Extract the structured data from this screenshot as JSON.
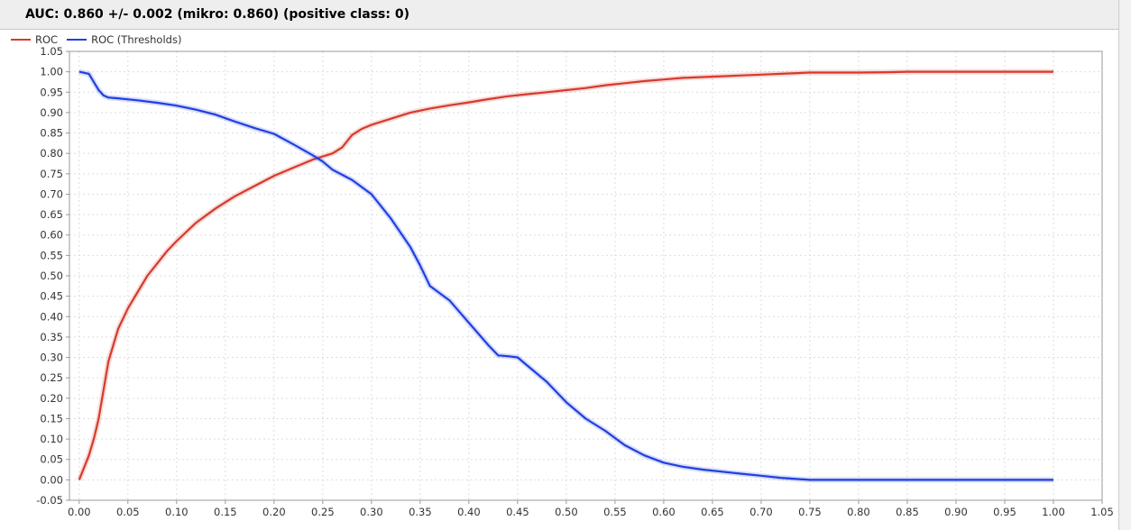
{
  "header": {
    "title": "AUC: 0.860 +/- 0.002 (mikro: 0.860) (positive class: 0)"
  },
  "colors": {
    "roc": "#d63a2c",
    "thresholds": "#1f3fe0",
    "grid": "#dddddd",
    "frame": "#999999"
  },
  "chart_data": {
    "type": "line",
    "title": "AUC: 0.860 +/- 0.002 (mikro: 0.860) (positive class: 0)",
    "xlim": [
      -0.01,
      1.05
    ],
    "ylim": [
      -0.05,
      1.05
    ],
    "xticks": [
      "0.00",
      "0.05",
      "0.10",
      "0.15",
      "0.20",
      "0.25",
      "0.30",
      "0.35",
      "0.40",
      "0.45",
      "0.50",
      "0.55",
      "0.60",
      "0.65",
      "0.70",
      "0.75",
      "0.80",
      "0.85",
      "0.90",
      "0.95",
      "1.00",
      "1.05"
    ],
    "yticks": [
      "-0.05",
      "0.00",
      "0.05",
      "0.10",
      "0.15",
      "0.20",
      "0.25",
      "0.30",
      "0.35",
      "0.40",
      "0.45",
      "0.50",
      "0.55",
      "0.60",
      "0.65",
      "0.70",
      "0.75",
      "0.80",
      "0.85",
      "0.90",
      "0.95",
      "1.00",
      "1.05"
    ],
    "grid": true,
    "legend_position": "top-left",
    "series": [
      {
        "name": "ROC",
        "color": "#d63a2c",
        "x": [
          0.0,
          0.005,
          0.01,
          0.015,
          0.02,
          0.025,
          0.03,
          0.035,
          0.04,
          0.05,
          0.06,
          0.07,
          0.08,
          0.09,
          0.1,
          0.12,
          0.14,
          0.16,
          0.18,
          0.2,
          0.22,
          0.24,
          0.26,
          0.27,
          0.28,
          0.29,
          0.3,
          0.32,
          0.34,
          0.36,
          0.38,
          0.4,
          0.42,
          0.44,
          0.46,
          0.48,
          0.5,
          0.52,
          0.54,
          0.56,
          0.58,
          0.6,
          0.62,
          0.64,
          0.66,
          0.68,
          0.7,
          0.72,
          0.74,
          0.75,
          0.8,
          0.83,
          0.85,
          0.9,
          0.95,
          1.0
        ],
        "y": [
          0.0,
          0.03,
          0.06,
          0.1,
          0.15,
          0.22,
          0.29,
          0.33,
          0.37,
          0.42,
          0.46,
          0.5,
          0.53,
          0.56,
          0.585,
          0.63,
          0.665,
          0.695,
          0.72,
          0.745,
          0.765,
          0.785,
          0.8,
          0.815,
          0.845,
          0.86,
          0.87,
          0.885,
          0.9,
          0.91,
          0.918,
          0.925,
          0.933,
          0.94,
          0.945,
          0.95,
          0.955,
          0.96,
          0.967,
          0.972,
          0.977,
          0.981,
          0.985,
          0.987,
          0.989,
          0.991,
          0.993,
          0.995,
          0.997,
          0.998,
          0.998,
          0.999,
          1.0,
          1.0,
          1.0,
          1.0
        ]
      },
      {
        "name": "ROC (Thresholds)",
        "color": "#1f3fe0",
        "x": [
          0.0,
          0.01,
          0.015,
          0.02,
          0.025,
          0.03,
          0.04,
          0.06,
          0.08,
          0.1,
          0.12,
          0.14,
          0.16,
          0.18,
          0.2,
          0.22,
          0.24,
          0.25,
          0.26,
          0.28,
          0.3,
          0.32,
          0.34,
          0.35,
          0.36,
          0.38,
          0.4,
          0.42,
          0.43,
          0.44,
          0.45,
          0.46,
          0.48,
          0.5,
          0.52,
          0.54,
          0.56,
          0.58,
          0.6,
          0.62,
          0.64,
          0.66,
          0.68,
          0.7,
          0.72,
          0.75,
          0.8,
          0.85,
          0.9,
          0.95,
          1.0
        ],
        "y": [
          1.0,
          0.995,
          0.975,
          0.955,
          0.942,
          0.937,
          0.935,
          0.93,
          0.924,
          0.917,
          0.907,
          0.895,
          0.878,
          0.862,
          0.848,
          0.822,
          0.795,
          0.78,
          0.76,
          0.735,
          0.7,
          0.64,
          0.57,
          0.525,
          0.475,
          0.44,
          0.385,
          0.33,
          0.305,
          0.303,
          0.3,
          0.28,
          0.24,
          0.19,
          0.15,
          0.12,
          0.085,
          0.06,
          0.042,
          0.032,
          0.025,
          0.02,
          0.015,
          0.01,
          0.005,
          0.0,
          0.0,
          0.0,
          0.0,
          0.0,
          0.0
        ]
      }
    ]
  }
}
